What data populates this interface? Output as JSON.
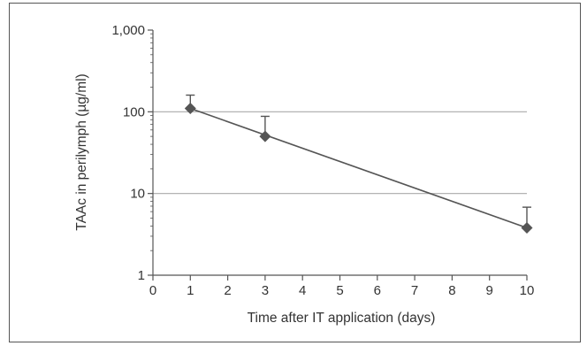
{
  "chart_data": {
    "type": "line",
    "title": "",
    "xlabel": "Time after IT application (days)",
    "ylabel": "TAAc in perilymph (µg/ml)",
    "x_ticks": [
      "0",
      "1",
      "2",
      "3",
      "4",
      "5",
      "6",
      "7",
      "8",
      "9",
      "10"
    ],
    "y_ticks": [
      "1",
      "10",
      "100",
      "1,000"
    ],
    "xlim": [
      0,
      10
    ],
    "ylim": [
      1,
      1000
    ],
    "y_scale": "log",
    "grid": "horizontal major lines at 10 and 100",
    "legend": "none",
    "series": [
      {
        "x": [
          1,
          3,
          10
        ],
        "y": [
          110,
          50,
          3.8
        ],
        "error_upper": [
          160,
          88,
          6.8
        ],
        "marker": "diamond"
      }
    ],
    "trendline": {
      "type": "exponential",
      "x": [
        1,
        10
      ],
      "y": [
        110,
        3.8
      ]
    },
    "colors": {
      "series": "#555555",
      "gridline": "#aaaaaa",
      "axis": "#555555",
      "text": "#333333"
    }
  }
}
